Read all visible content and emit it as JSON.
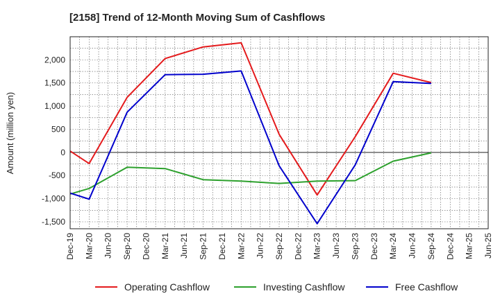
{
  "chart_data": {
    "type": "line",
    "title": "[2158]  Trend of 12-Month Moving Sum of Cashflows",
    "xlabel": "",
    "ylabel": "Amount (million yen)",
    "ylim": [
      -1650,
      2500
    ],
    "yticks": [
      -1500,
      -1000,
      -500,
      0,
      500,
      1000,
      1500,
      2000
    ],
    "ytick_labels": [
      "-1,500",
      "-1,000",
      "-500",
      "0",
      "500",
      "1,000",
      "1,500",
      "2,000"
    ],
    "categories": [
      "Dec-19",
      "Mar-20",
      "Jun-20",
      "Sep-20",
      "Dec-20",
      "Mar-21",
      "Jun-21",
      "Sep-21",
      "Dec-21",
      "Mar-22",
      "Jun-22",
      "Sep-22",
      "Dec-22",
      "Mar-23",
      "Jun-23",
      "Sep-23",
      "Dec-23",
      "Mar-24",
      "Jun-24",
      "Sep-24",
      "Dec-24",
      "Mar-25"
    ],
    "tick_categories": [
      "Dec-19",
      "Mar-20",
      "Jun-20",
      "Sep-20",
      "Dec-20",
      "Mar-21",
      "Jun-21",
      "Sep-21",
      "Dec-21",
      "Mar-22",
      "Jun-22",
      "Sep-22",
      "Dec-22",
      "Mar-23",
      "Jun-23",
      "Sep-23",
      "Dec-23",
      "Mar-24",
      "Jun-24",
      "Sep-24",
      "Dec-24",
      "Mar-25",
      "Jun-25"
    ],
    "grid": true,
    "legend": "bottom",
    "series": [
      {
        "name": "Operating Cashflow",
        "color": "#e41a1c",
        "points": [
          [
            "Dec-19",
            30
          ],
          [
            "Mar-20",
            -240
          ],
          [
            "Sep-20",
            1190
          ],
          [
            "Mar-21",
            2030
          ],
          [
            "Sep-21",
            2280
          ],
          [
            "Mar-22",
            2370
          ],
          [
            "Sep-22",
            390
          ],
          [
            "Mar-23",
            -920
          ],
          [
            "Sep-23",
            340
          ],
          [
            "Mar-24",
            1710
          ],
          [
            "Sep-24",
            1510
          ]
        ]
      },
      {
        "name": "Investing Cashflow",
        "color": "#2ca02c",
        "points": [
          [
            "Dec-19",
            -900
          ],
          [
            "Mar-20",
            -780
          ],
          [
            "Sep-20",
            -320
          ],
          [
            "Mar-21",
            -350
          ],
          [
            "Sep-21",
            -590
          ],
          [
            "Mar-22",
            -620
          ],
          [
            "Sep-22",
            -670
          ],
          [
            "Mar-23",
            -620
          ],
          [
            "Sep-23",
            -610
          ],
          [
            "Mar-24",
            -190
          ],
          [
            "Sep-24",
            -10
          ]
        ]
      },
      {
        "name": "Free Cashflow",
        "color": "#0000cc",
        "points": [
          [
            "Dec-19",
            -880
          ],
          [
            "Mar-20",
            -1010
          ],
          [
            "Sep-20",
            870
          ],
          [
            "Mar-21",
            1680
          ],
          [
            "Sep-21",
            1690
          ],
          [
            "Mar-22",
            1760
          ],
          [
            "Sep-22",
            -290
          ],
          [
            "Mar-23",
            -1540
          ],
          [
            "Sep-23",
            -270
          ],
          [
            "Mar-24",
            1530
          ],
          [
            "Sep-24",
            1490
          ]
        ]
      }
    ]
  }
}
